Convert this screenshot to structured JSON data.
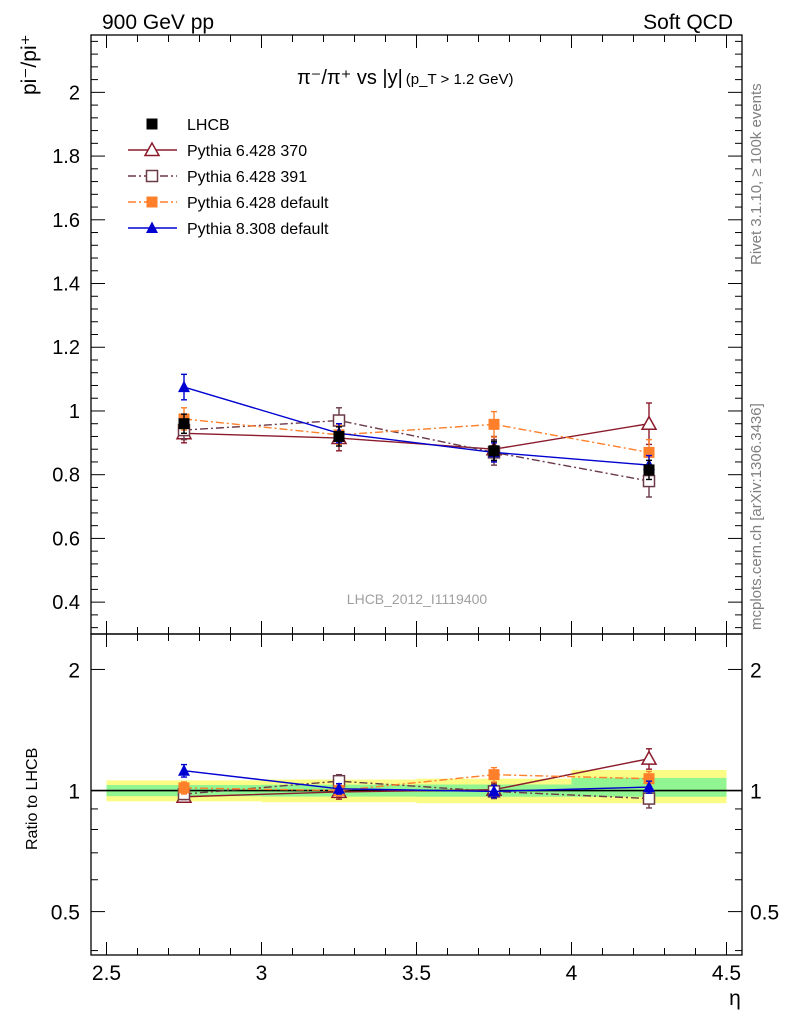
{
  "header": {
    "left": "900 GeV pp",
    "right": "Soft QCD"
  },
  "side_labels": {
    "rivet": "Rivet 3.1.10, ≥ 100k events",
    "mcplots": "mcplots.cern.ch [arXiv:1306.3436]"
  },
  "chart_data": [
    {
      "type": "line",
      "panel": "main",
      "title_main": "π⁻/π⁺ vs |y|",
      "title_cut": "(p_T > 1.2 GeV)",
      "ylabel": "pi⁻/pi⁺",
      "watermark": "LHCB_2012_I1119400",
      "xlim": [
        2.45,
        4.55
      ],
      "ylim": [
        0.3,
        2.18
      ],
      "yticks": [
        0.4,
        0.6,
        0.8,
        1,
        1.2,
        1.4,
        1.6,
        1.8,
        2
      ],
      "ytick_labels": [
        "0.4",
        "0.6",
        "0.8",
        "1",
        "1.2",
        "1.4",
        "1.6",
        "1.8",
        "2"
      ],
      "x": [
        2.75,
        3.25,
        3.75,
        4.25
      ],
      "series": [
        {
          "name": "LHCB",
          "color": "#000000",
          "marker": "square",
          "line": "none",
          "values": [
            0.96,
            0.92,
            0.875,
            0.815
          ],
          "errors": [
            0.03,
            0.03,
            0.03,
            0.03
          ]
        },
        {
          "name": "Pythia 6.428 370",
          "color": "#8b1a2b",
          "marker": "triangle-open",
          "line": "solid",
          "values": [
            0.93,
            0.915,
            0.88,
            0.96
          ],
          "errors": [
            0.03,
            0.04,
            0.04,
            0.065
          ]
        },
        {
          "name": "Pythia 6.428 391",
          "color": "#6b3a48",
          "marker": "square-open",
          "line": "dashdot",
          "values": [
            0.94,
            0.97,
            0.87,
            0.78
          ],
          "errors": [
            0.03,
            0.04,
            0.04,
            0.05
          ]
        },
        {
          "name": "Pythia 6.428 default",
          "color": "#ff7f2a",
          "marker": "square",
          "line": "dashdot",
          "values": [
            0.975,
            0.925,
            0.958,
            0.87
          ],
          "errors": [
            0.035,
            0.03,
            0.04,
            0.04
          ]
        },
        {
          "name": "Pythia 8.308 default",
          "color": "#0000d0",
          "marker": "triangle",
          "line": "solid",
          "values": [
            1.075,
            0.93,
            0.87,
            0.83
          ],
          "errors": [
            0.04,
            0.03,
            0.03,
            0.03
          ]
        }
      ]
    },
    {
      "type": "line",
      "panel": "ratio",
      "ylabel": "Ratio to LHCB",
      "xlabel": "η",
      "log_y": true,
      "xlim": [
        2.45,
        4.55
      ],
      "ylim": [
        0.39,
        2.45
      ],
      "xticks": [
        2.5,
        3,
        3.5,
        4,
        4.5
      ],
      "xtick_labels": [
        "2.5",
        "3",
        "3.5",
        "4",
        "4.5"
      ],
      "yticks": [
        0.5,
        1,
        2
      ],
      "ytick_labels": [
        "0.5",
        "1",
        "2"
      ],
      "x": [
        2.75,
        3.25,
        3.75,
        4.25
      ],
      "bands": [
        {
          "x_range": [
            2.5,
            3.0
          ],
          "green": [
            0.968,
            1.032
          ],
          "yellow": [
            0.94,
            1.06
          ]
        },
        {
          "x_range": [
            3.0,
            3.5
          ],
          "green": [
            0.966,
            1.034
          ],
          "yellow": [
            0.935,
            1.065
          ]
        },
        {
          "x_range": [
            3.5,
            4.0
          ],
          "green": [
            0.965,
            1.035
          ],
          "yellow": [
            0.93,
            1.07
          ]
        },
        {
          "x_range": [
            4.0,
            4.5
          ],
          "green": [
            0.965,
            1.075
          ],
          "yellow": [
            0.93,
            1.125
          ]
        }
      ],
      "series": [
        {
          "name": "Pythia 6.428 370",
          "color": "#8b1a2b",
          "marker": "triangle-open",
          "line": "solid",
          "values": [
            0.965,
            0.992,
            1.005,
            1.2
          ],
          "errors": [
            0.03,
            0.04,
            0.04,
            0.07
          ]
        },
        {
          "name": "Pythia 6.428 391",
          "color": "#6b3a48",
          "marker": "square-open",
          "line": "dashdot",
          "values": [
            0.98,
            1.055,
            0.995,
            0.955
          ],
          "errors": [
            0.03,
            0.04,
            0.04,
            0.05
          ]
        },
        {
          "name": "Pythia 6.428 default",
          "color": "#ff7f2a",
          "marker": "square",
          "line": "dashdot",
          "values": [
            1.015,
            1.0,
            1.095,
            1.07
          ],
          "errors": [
            0.035,
            0.03,
            0.045,
            0.045
          ]
        },
        {
          "name": "Pythia 8.308 default",
          "color": "#0000d0",
          "marker": "triangle",
          "line": "solid",
          "values": [
            1.12,
            1.01,
            0.995,
            1.02
          ],
          "errors": [
            0.04,
            0.03,
            0.035,
            0.035
          ]
        }
      ]
    }
  ]
}
